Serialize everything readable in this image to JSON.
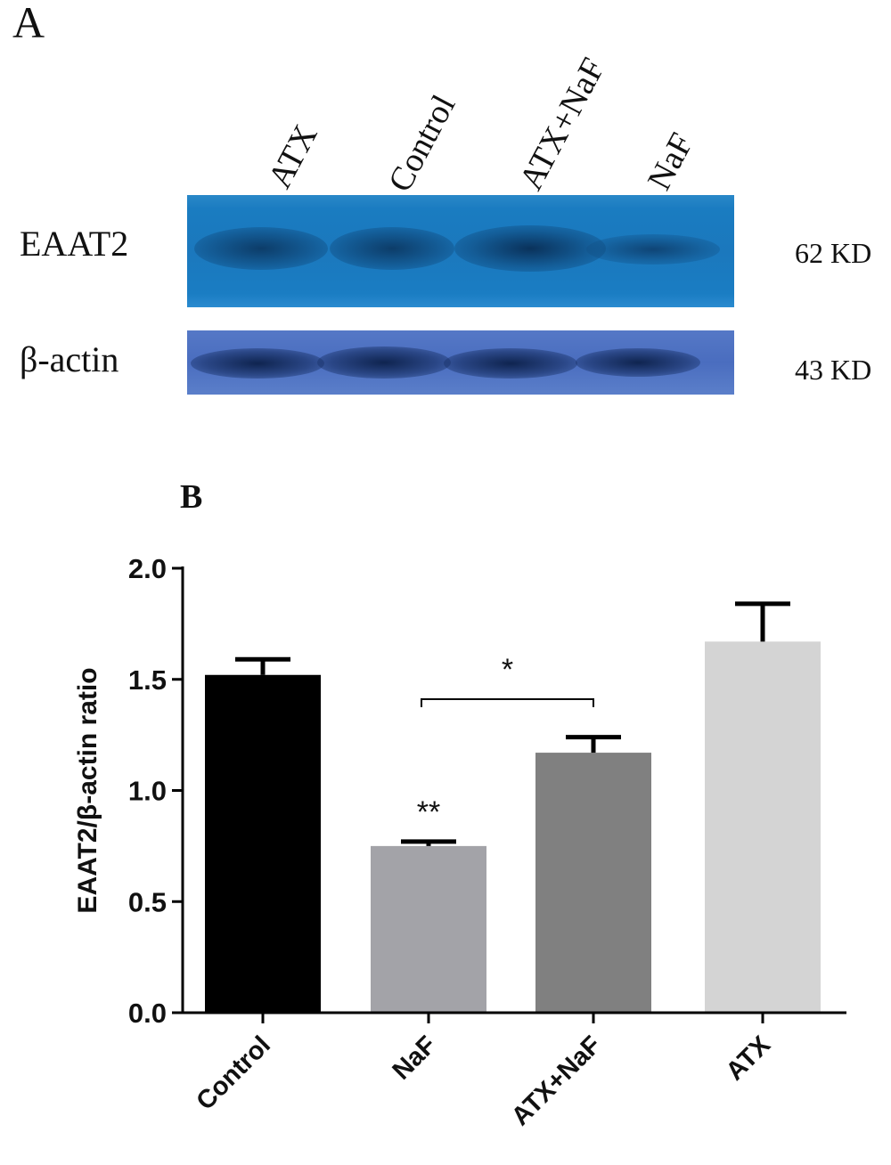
{
  "panel_a": {
    "letter": "A",
    "lanes": [
      "ATX",
      "Control",
      "ATX+NaF",
      "NaF"
    ],
    "bands": [
      {
        "label": "EAAT2",
        "size": "62 KD"
      },
      {
        "label": "β-actin",
        "size": "43 KD"
      }
    ]
  },
  "panel_b": {
    "letter": "B"
  },
  "chart_data": {
    "type": "bar",
    "categories": [
      "Control",
      "NaF",
      "ATX+NaF",
      "ATX"
    ],
    "values": [
      1.52,
      0.75,
      1.17,
      1.67
    ],
    "errors": [
      0.07,
      0.02,
      0.07,
      0.17
    ],
    "colors": [
      "#000000",
      "#a3a3a8",
      "#808080",
      "#d4d4d4"
    ],
    "ylabel": "EAAT2/β-actin ratio",
    "xlabel": "",
    "ylim": [
      0,
      2.0
    ],
    "yticks": [
      "0.0",
      "0.5",
      "1.0",
      "1.5",
      "2.0"
    ],
    "annotations": [
      {
        "text": "**",
        "category": "NaF"
      },
      {
        "text": "*",
        "between": [
          "NaF",
          "ATX+NaF"
        ]
      }
    ]
  }
}
